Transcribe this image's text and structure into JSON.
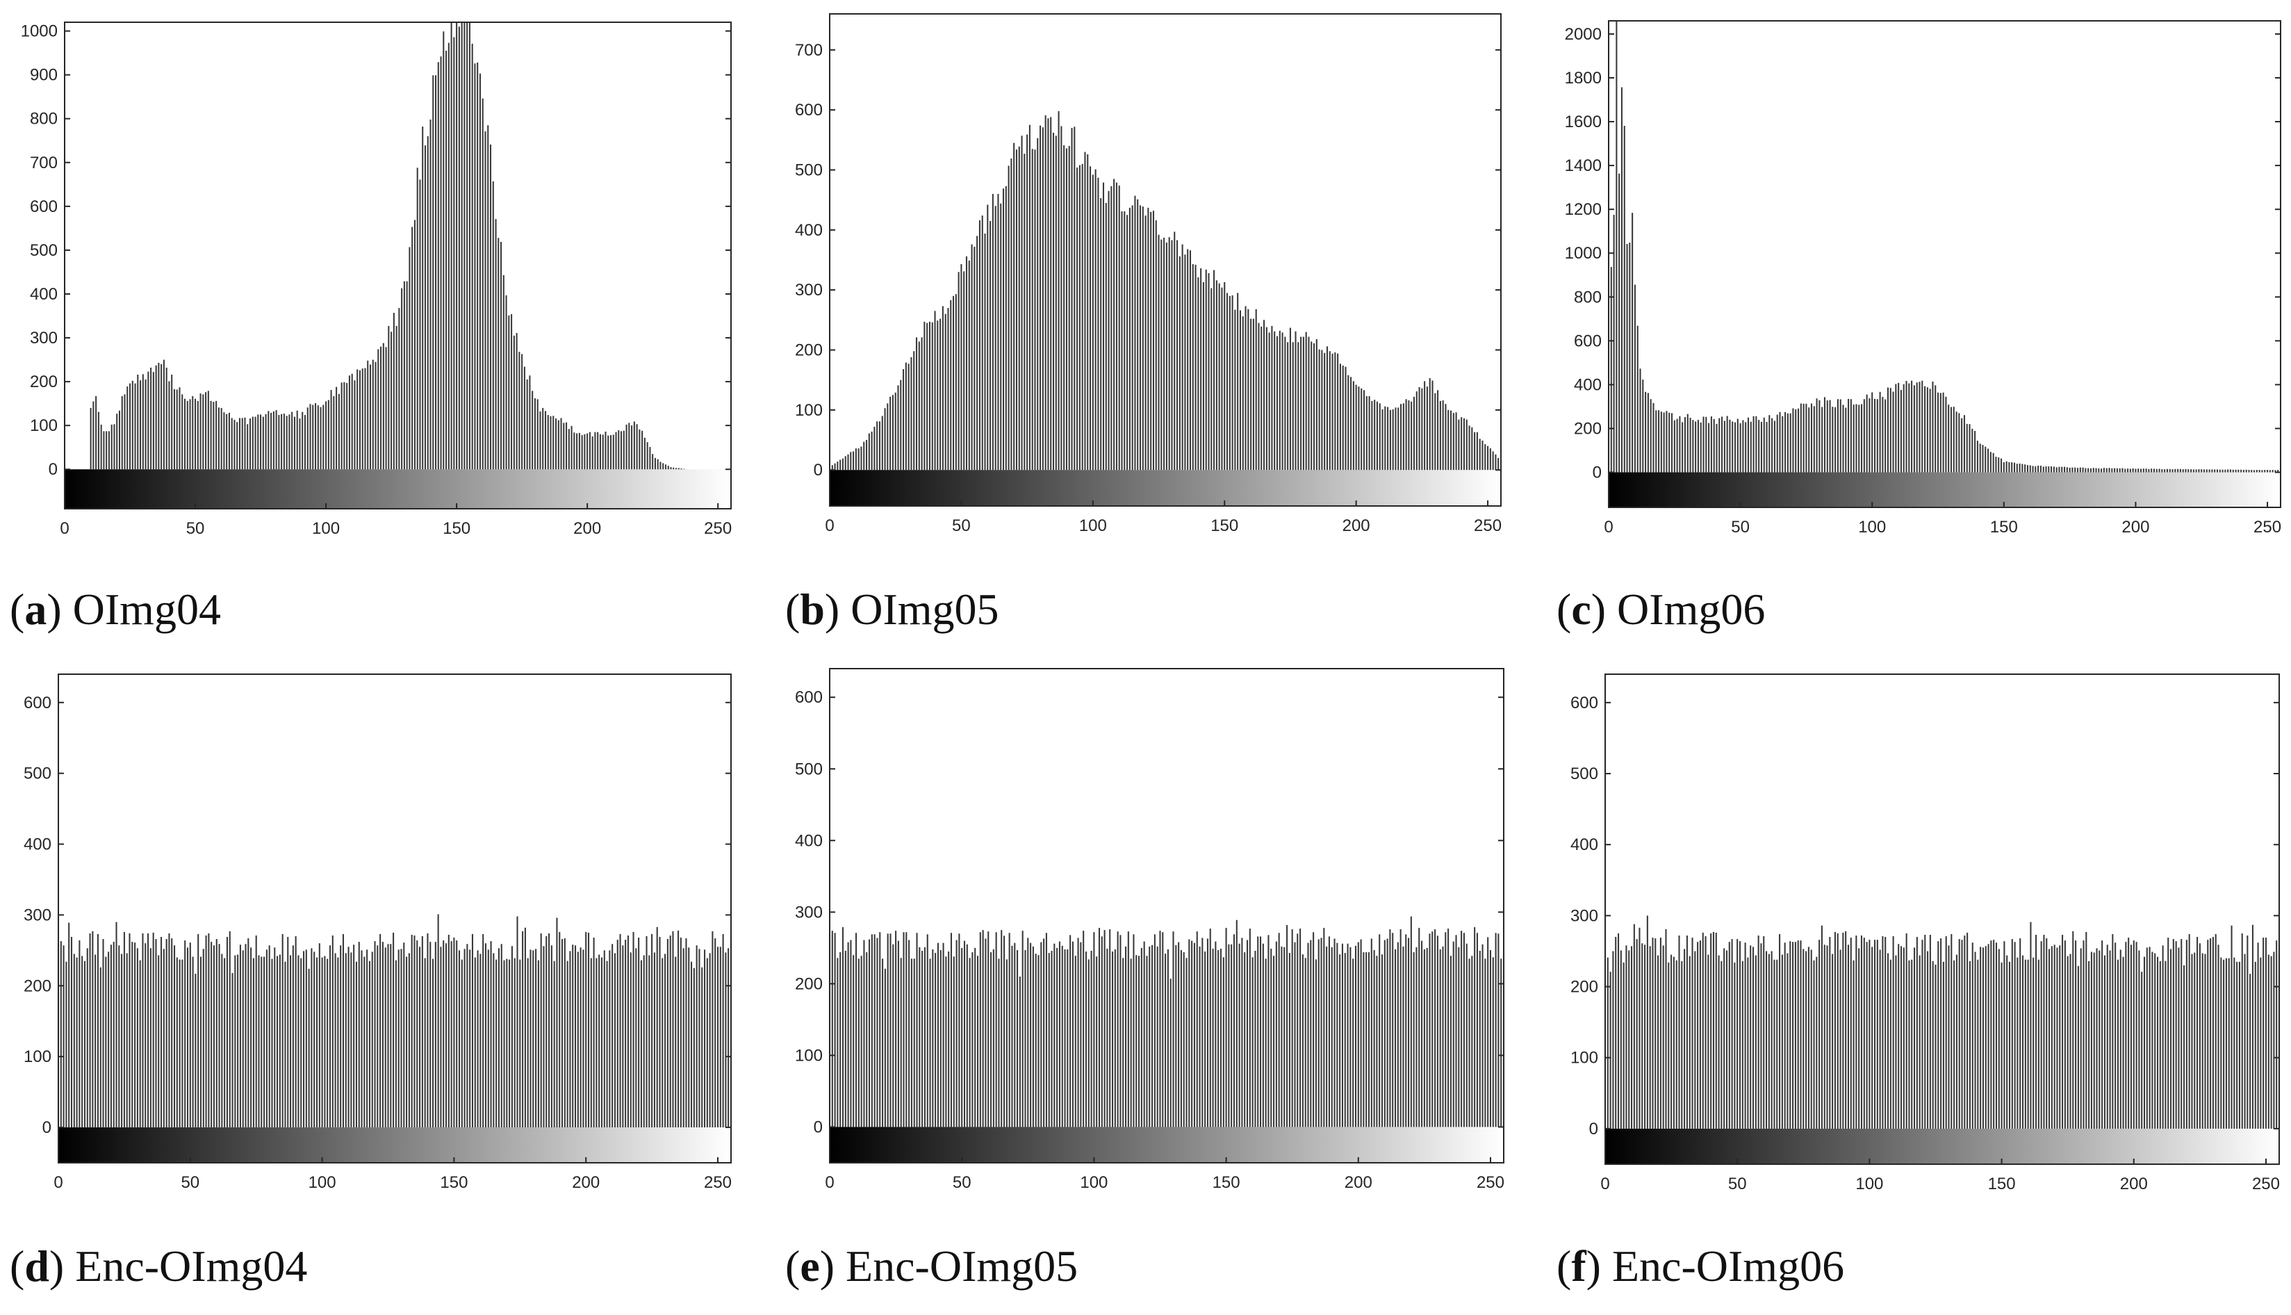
{
  "colors": {
    "bar": "#3a3a3a",
    "axis": "#262626",
    "frame": "#262626",
    "background": "#ffffff"
  },
  "chart_data": [
    {
      "id": "a",
      "type": "bar",
      "title": "OImg04",
      "letter": "a",
      "xlabel": "",
      "ylabel": "",
      "xlim": [
        0,
        255
      ],
      "ylim": [
        -90,
        1020
      ],
      "xticks": [
        0,
        50,
        100,
        150,
        200,
        250
      ],
      "yticks": [
        0,
        100,
        200,
        300,
        400,
        500,
        600,
        700,
        800,
        900,
        1000
      ],
      "colorbar": "grayscale 0-255",
      "shape": "peaks",
      "seed": 4,
      "noise": 0.07,
      "cut": [
        10,
        238
      ],
      "anchors": [
        [
          0,
          0
        ],
        [
          9,
          0
        ],
        [
          10,
          150
        ],
        [
          12,
          160
        ],
        [
          14,
          95
        ],
        [
          17,
          85
        ],
        [
          20,
          120
        ],
        [
          24,
          200
        ],
        [
          30,
          210
        ],
        [
          35,
          245
        ],
        [
          38,
          240
        ],
        [
          42,
          190
        ],
        [
          48,
          155
        ],
        [
          55,
          170
        ],
        [
          60,
          140
        ],
        [
          65,
          115
        ],
        [
          70,
          110
        ],
        [
          80,
          130
        ],
        [
          90,
          125
        ],
        [
          100,
          160
        ],
        [
          110,
          205
        ],
        [
          120,
          260
        ],
        [
          128,
          360
        ],
        [
          132,
          480
        ],
        [
          136,
          700
        ],
        [
          140,
          850
        ],
        [
          144,
          960
        ],
        [
          147,
          1020
        ],
        [
          150,
          1060
        ],
        [
          154,
          1040
        ],
        [
          158,
          930
        ],
        [
          162,
          760
        ],
        [
          166,
          550
        ],
        [
          170,
          360
        ],
        [
          176,
          230
        ],
        [
          182,
          140
        ],
        [
          190,
          110
        ],
        [
          197,
          80
        ],
        [
          205,
          80
        ],
        [
          212,
          85
        ],
        [
          218,
          110
        ],
        [
          222,
          75
        ],
        [
          226,
          25
        ],
        [
          232,
          5
        ],
        [
          238,
          0
        ],
        [
          255,
          0
        ]
      ]
    },
    {
      "id": "b",
      "type": "bar",
      "title": "OImg05",
      "letter": "b",
      "xlabel": "",
      "ylabel": "",
      "xlim": [
        0,
        255
      ],
      "ylim": [
        -60,
        760
      ],
      "xticks": [
        0,
        50,
        100,
        150,
        200,
        250
      ],
      "yticks": [
        0,
        100,
        200,
        300,
        400,
        500,
        600,
        700
      ],
      "colorbar": "grayscale 0-255",
      "shape": "peaks",
      "seed": 5,
      "noise": 0.06,
      "cut": [
        1,
        255
      ],
      "anchors": [
        [
          0,
          5
        ],
        [
          5,
          20
        ],
        [
          12,
          40
        ],
        [
          20,
          90
        ],
        [
          28,
          160
        ],
        [
          36,
          240
        ],
        [
          45,
          280
        ],
        [
          55,
          380
        ],
        [
          62,
          440
        ],
        [
          70,
          520
        ],
        [
          78,
          560
        ],
        [
          84,
          590
        ],
        [
          90,
          570
        ],
        [
          96,
          510
        ],
        [
          102,
          480
        ],
        [
          110,
          450
        ],
        [
          120,
          420
        ],
        [
          130,
          390
        ],
        [
          140,
          340
        ],
        [
          150,
          300
        ],
        [
          160,
          260
        ],
        [
          170,
          230
        ],
        [
          180,
          220
        ],
        [
          190,
          200
        ],
        [
          200,
          150
        ],
        [
          210,
          100
        ],
        [
          220,
          115
        ],
        [
          228,
          150
        ],
        [
          234,
          105
        ],
        [
          242,
          80
        ],
        [
          250,
          40
        ],
        [
          255,
          15
        ]
      ]
    },
    {
      "id": "c",
      "type": "bar",
      "title": "OImg06",
      "letter": "c",
      "xlabel": "",
      "ylabel": "",
      "xlim": [
        0,
        255
      ],
      "ylim": [
        -160,
        2060
      ],
      "xticks": [
        0,
        50,
        100,
        150,
        200,
        250
      ],
      "yticks": [
        0,
        200,
        400,
        600,
        800,
        1000,
        1200,
        1400,
        1600,
        1800,
        2000
      ],
      "colorbar": "grayscale 0-255",
      "shape": "peaks",
      "seed": 6,
      "noise": 0.08,
      "cut": [
        0,
        255
      ],
      "anchors": [
        [
          0,
          330
        ],
        [
          1,
          900
        ],
        [
          2,
          1250
        ],
        [
          3,
          2060
        ],
        [
          4,
          1350
        ],
        [
          5,
          1750
        ],
        [
          6,
          1700
        ],
        [
          7,
          1100
        ],
        [
          8,
          1000
        ],
        [
          9,
          1220
        ],
        [
          10,
          820
        ],
        [
          11,
          620
        ],
        [
          12,
          460
        ],
        [
          14,
          380
        ],
        [
          18,
          300
        ],
        [
          25,
          250
        ],
        [
          40,
          240
        ],
        [
          60,
          240
        ],
        [
          70,
          280
        ],
        [
          80,
          320
        ],
        [
          90,
          320
        ],
        [
          100,
          340
        ],
        [
          108,
          370
        ],
        [
          113,
          400
        ],
        [
          118,
          430
        ],
        [
          124,
          400
        ],
        [
          130,
          320
        ],
        [
          136,
          230
        ],
        [
          142,
          120
        ],
        [
          150,
          50
        ],
        [
          160,
          30
        ],
        [
          180,
          20
        ],
        [
          210,
          15
        ],
        [
          255,
          10
        ]
      ]
    },
    {
      "id": "d",
      "type": "bar",
      "title": "Enc-OImg04",
      "letter": "d",
      "xlabel": "",
      "ylabel": "",
      "xlim": [
        0,
        255
      ],
      "ylim": [
        -50,
        640
      ],
      "xticks": [
        0,
        50,
        100,
        150,
        200,
        250
      ],
      "yticks": [
        0,
        100,
        200,
        300,
        400,
        500,
        600
      ],
      "colorbar": "grayscale 0-255",
      "shape": "uniform",
      "seed": 14,
      "mean": 256,
      "spread": 22,
      "cut": [
        0,
        255
      ],
      "anchors": []
    },
    {
      "id": "e",
      "type": "bar",
      "title": "Enc-OImg05",
      "letter": "e",
      "xlabel": "",
      "ylabel": "",
      "xlim": [
        0,
        255
      ],
      "ylim": [
        -50,
        640
      ],
      "xticks": [
        0,
        50,
        100,
        150,
        200,
        250
      ],
      "yticks": [
        0,
        100,
        200,
        300,
        400,
        500,
        600
      ],
      "colorbar": "grayscale 0-255",
      "shape": "uniform",
      "seed": 15,
      "mean": 256,
      "spread": 22,
      "cut": [
        0,
        255
      ],
      "anchors": []
    },
    {
      "id": "f",
      "type": "bar",
      "title": "Enc-OImg06",
      "letter": "f",
      "xlabel": "",
      "ylabel": "",
      "xlim": [
        0,
        255
      ],
      "ylim": [
        -50,
        640
      ],
      "xticks": [
        0,
        50,
        100,
        150,
        200,
        250
      ],
      "yticks": [
        0,
        100,
        200,
        300,
        400,
        500,
        600
      ],
      "colorbar": "grayscale 0-255",
      "shape": "uniform",
      "seed": 16,
      "mean": 256,
      "spread": 22,
      "cut": [
        0,
        255
      ],
      "anchors": []
    }
  ]
}
